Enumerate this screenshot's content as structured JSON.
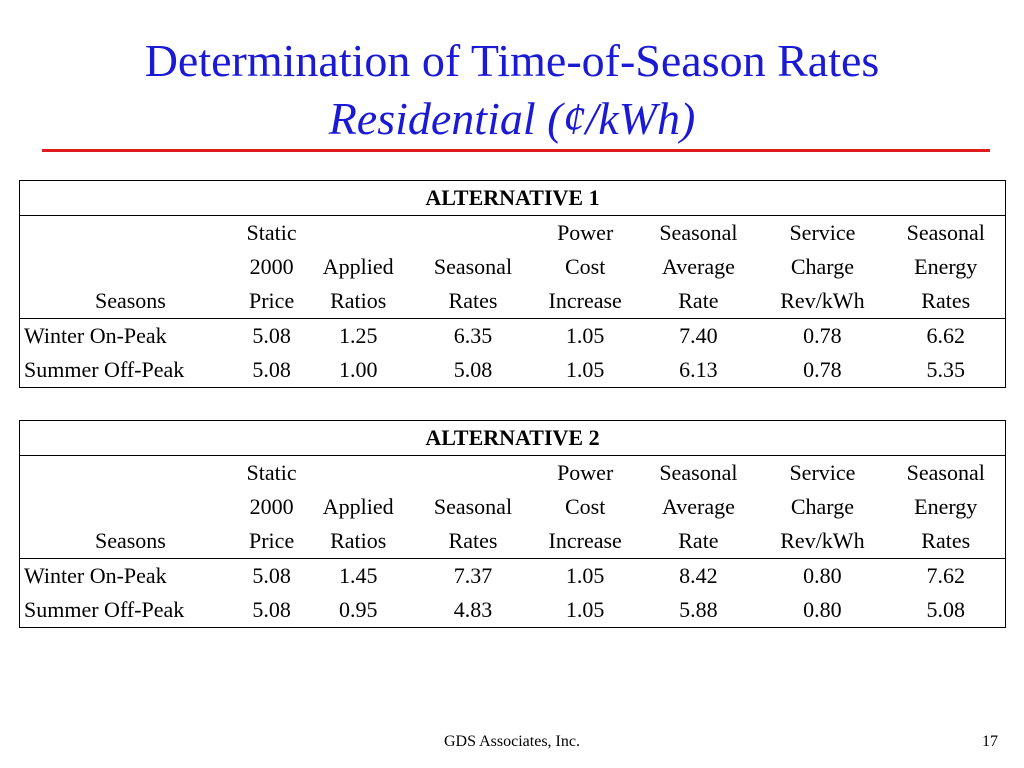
{
  "title": "Determination of Time-of-Season Rates",
  "subtitle": "Residential (¢/kWh)",
  "columns": [
    [
      "",
      "",
      "Seasons"
    ],
    [
      "Static",
      "2000",
      "Price"
    ],
    [
      "",
      "Applied",
      "Ratios"
    ],
    [
      "",
      "Seasonal",
      "Rates"
    ],
    [
      "Power",
      "Cost",
      "Increase"
    ],
    [
      "Seasonal",
      "Average",
      "Rate"
    ],
    [
      "Service",
      "Charge",
      "Rev/kWh"
    ],
    [
      "Seasonal",
      "Energy",
      "Rates"
    ]
  ],
  "tables": [
    {
      "heading": "ALTERNATIVE 1",
      "rows": [
        [
          "Winter On-Peak",
          "5.08",
          "1.25",
          "6.35",
          "1.05",
          "7.40",
          "0.78",
          "6.62"
        ],
        [
          "Summer Off-Peak",
          "5.08",
          "1.00",
          "5.08",
          "1.05",
          "6.13",
          "0.78",
          "5.35"
        ]
      ]
    },
    {
      "heading": "ALTERNATIVE 2",
      "rows": [
        [
          "Winter On-Peak",
          "5.08",
          "1.45",
          "7.37",
          "1.05",
          "8.42",
          "0.80",
          "7.62"
        ],
        [
          "Summer Off-Peak",
          "5.08",
          "0.95",
          "4.83",
          "1.05",
          "5.88",
          "0.80",
          "5.08"
        ]
      ]
    }
  ],
  "footer": "GDS Associates, Inc.",
  "page_number": "17",
  "colors": {
    "title": "#1a1ad6",
    "rule": "#e01c1c"
  }
}
